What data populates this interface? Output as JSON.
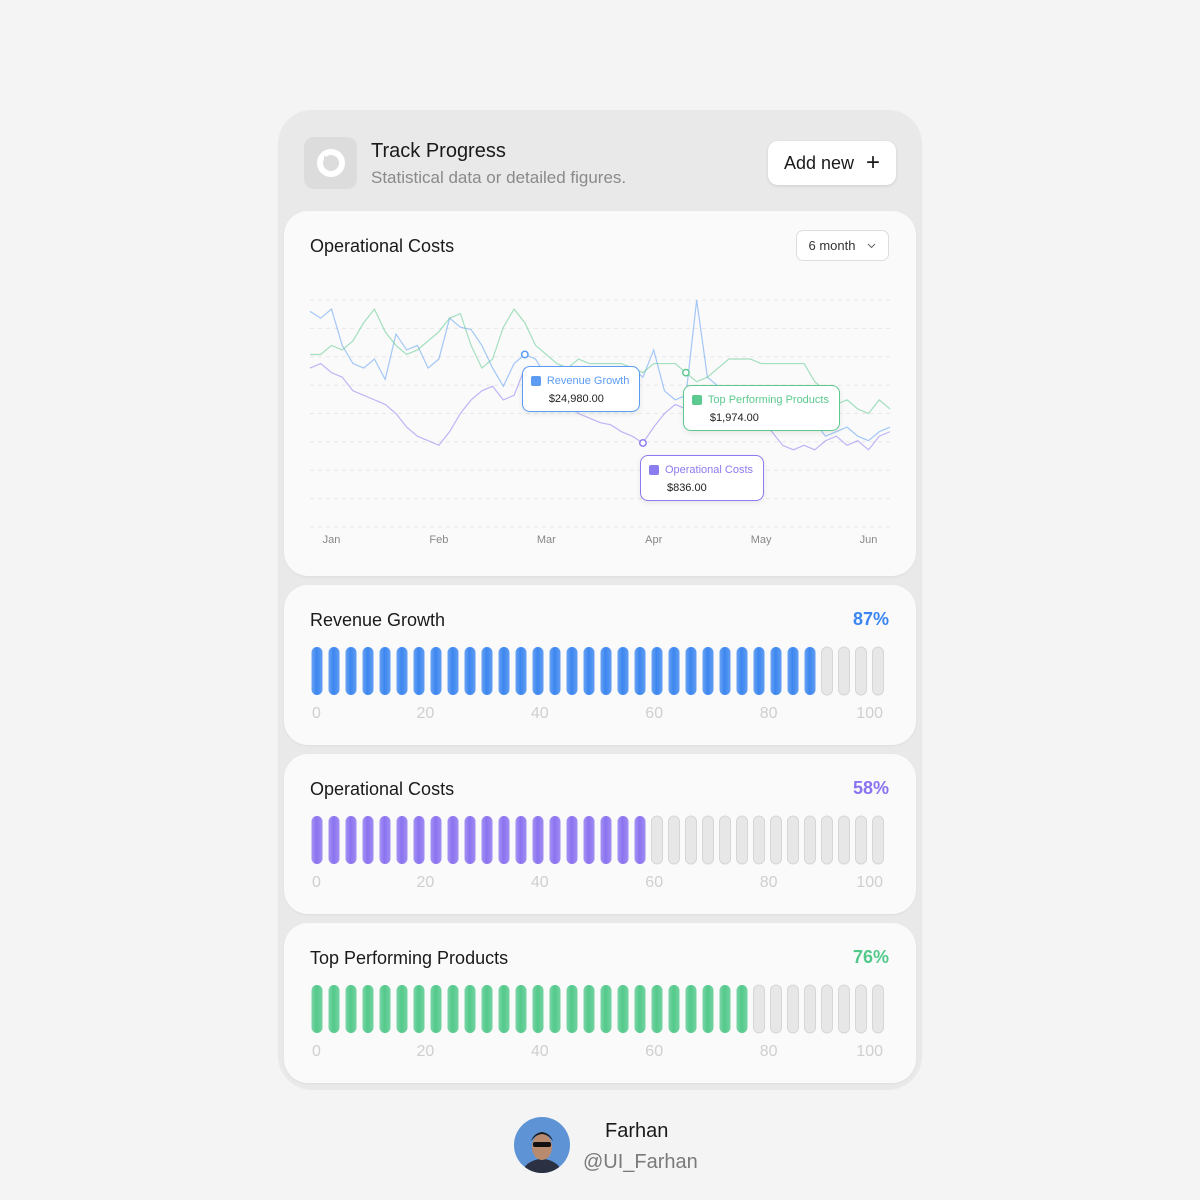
{
  "header": {
    "title": "Track Progress",
    "subtitle": "Statistical data or detailed figures.",
    "button": "Add new"
  },
  "chart_card": {
    "dropdown": "6 month"
  },
  "chart_data": {
    "type": "line",
    "title": "Operational Costs",
    "categories": [
      null,
      null,
      "Jan",
      null,
      null,
      null,
      null,
      null,
      null,
      null,
      null,
      null,
      "Feb",
      null,
      null,
      null,
      null,
      null,
      null,
      null,
      null,
      null,
      "Mar",
      null,
      null,
      null,
      null,
      null,
      null,
      null,
      null,
      null,
      "Apr",
      null,
      null,
      null,
      null,
      null,
      null,
      null,
      null,
      null,
      "May",
      null,
      null,
      null,
      null,
      null,
      null,
      null,
      null,
      null,
      "Jun",
      null,
      null
    ],
    "ylim": [
      0,
      100
    ],
    "series": [
      {
        "name": "Revenue Growth",
        "color": "#5b9cf2",
        "tooltip": "$24,980.00",
        "values": [
          95,
          92,
          96,
          80,
          72,
          70,
          74,
          65,
          85,
          78,
          80,
          70,
          74,
          92,
          88,
          87,
          80,
          70,
          62,
          72,
          76,
          74,
          66,
          70,
          68,
          66,
          64,
          62,
          60,
          58,
          70,
          66,
          78,
          60,
          56,
          58,
          100,
          66,
          62,
          60,
          62,
          62,
          58,
          50,
          48,
          46,
          44,
          46,
          40,
          42,
          44,
          40,
          38,
          42,
          44
        ]
      },
      {
        "name": "Operational Costs",
        "color": "#8b7cf0",
        "tooltip": "$836.00",
        "values": [
          70,
          72,
          68,
          66,
          60,
          58,
          56,
          54,
          50,
          44,
          40,
          38,
          36,
          42,
          50,
          56,
          60,
          62,
          56,
          58,
          70,
          68,
          66,
          60,
          55,
          50,
          48,
          46,
          45,
          42,
          40,
          37,
          44,
          50,
          54,
          52,
          56,
          60,
          58,
          50,
          52,
          54,
          46,
          42,
          36,
          34,
          36,
          34,
          38,
          40,
          36,
          38,
          34,
          40,
          42
        ]
      },
      {
        "name": "Top Performing Products",
        "color": "#5cc98e",
        "tooltip": "$1,974.00",
        "values": [
          76,
          76,
          80,
          78,
          82,
          90,
          96,
          86,
          80,
          76,
          78,
          82,
          86,
          92,
          94,
          80,
          70,
          74,
          88,
          96,
          90,
          80,
          76,
          72,
          70,
          74,
          72,
          72,
          72,
          72,
          70,
          68,
          72,
          72,
          72,
          68,
          64,
          66,
          70,
          74,
          74,
          74,
          72,
          72,
          72,
          72,
          72,
          64,
          60,
          54,
          56,
          52,
          50,
          56,
          52
        ]
      }
    ]
  },
  "progress": [
    {
      "title": "Revenue Growth",
      "value": 87,
      "value_label": "87%",
      "color": "#3b86f0",
      "ticks": [
        0,
        20,
        40,
        60,
        80,
        100
      ]
    },
    {
      "title": "Operational Costs",
      "value": 58,
      "value_label": "58%",
      "color": "#8a72f0",
      "ticks": [
        0,
        20,
        40,
        60,
        80,
        100
      ]
    },
    {
      "title": "Top Performing Products",
      "value": 76,
      "value_label": "76%",
      "color": "#52c98a",
      "ticks": [
        0,
        20,
        40,
        60,
        80,
        100
      ]
    }
  ],
  "footer": {
    "name": "Farhan",
    "handle": "@UI_Farhan"
  }
}
